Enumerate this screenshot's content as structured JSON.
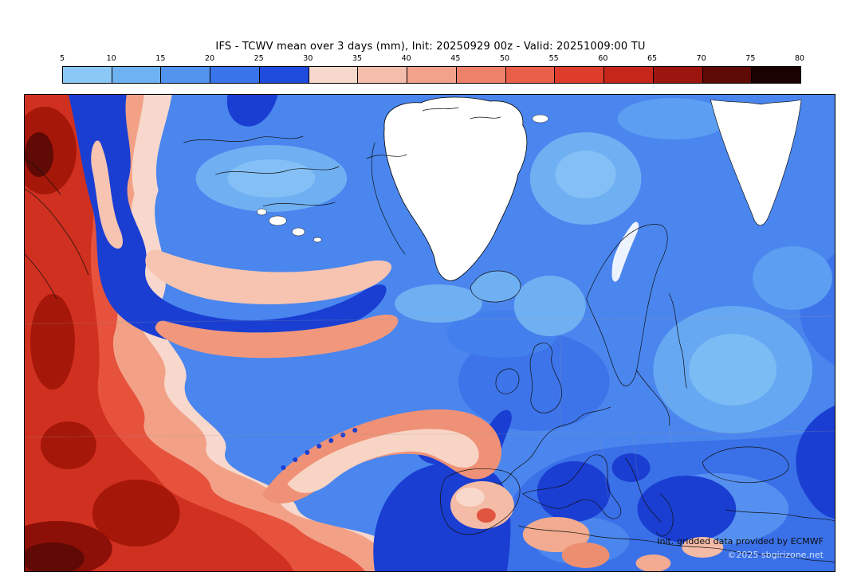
{
  "header": {
    "title": "IFS - TCWV mean over 3 days (mm), Init: 20250929 00z - Valid: 20251009:00 TU"
  },
  "colorbar": {
    "ticks": [
      "5",
      "10",
      "15",
      "20",
      "25",
      "30",
      "35",
      "40",
      "45",
      "50",
      "55",
      "60",
      "65",
      "70",
      "75",
      "80"
    ],
    "colors": [
      "#8bc8f6",
      "#6fb2f2",
      "#5293ee",
      "#3a74ea",
      "#1f4cdc",
      "#f7d8cd",
      "#f5bdab",
      "#f2a18a",
      "#ee8169",
      "#e95f4a",
      "#de3d2c",
      "#c6261a",
      "#9c150e",
      "#5e0a05",
      "#190200"
    ]
  },
  "map": {
    "credit_line1": "Init. gridded data provided by ECMWF",
    "credit_line2": "©2025 sbgirizone.net"
  },
  "chart_data": {
    "type": "heatmap",
    "title": "IFS - TCWV mean over 3 days (mm), Init: 20250929 00z - Valid: 20251009:00 TU",
    "model": "IFS",
    "variable": "TCWV mean over 3 days",
    "units": "mm",
    "init": "20250929 00z",
    "valid": "20251009:00 TU",
    "levels": [
      5,
      10,
      15,
      20,
      25,
      30,
      35,
      40,
      45,
      50,
      55,
      60,
      65,
      70,
      75,
      80
    ],
    "palette": [
      "#8bc8f6",
      "#6fb2f2",
      "#5293ee",
      "#3a74ea",
      "#1f4cdc",
      "#f7d8cd",
      "#f5bdab",
      "#f2a18a",
      "#ee8169",
      "#e95f4a",
      "#de3d2c",
      "#c6261a",
      "#9c150e",
      "#5e0a05",
      "#190200"
    ],
    "legend_position": "top",
    "region_note": "Filled-contour field over the North Atlantic, Greenland and Europe: high TCWV (reds 40-70 mm) over the western/subtropical Atlantic, a dark-blue dry filament (25-30 mm) snaking from NW Atlantic toward Iberia, mid blues (10-25 mm) over Europe and the Arctic, white (<5 mm) over the Greenland ice sheet"
  }
}
